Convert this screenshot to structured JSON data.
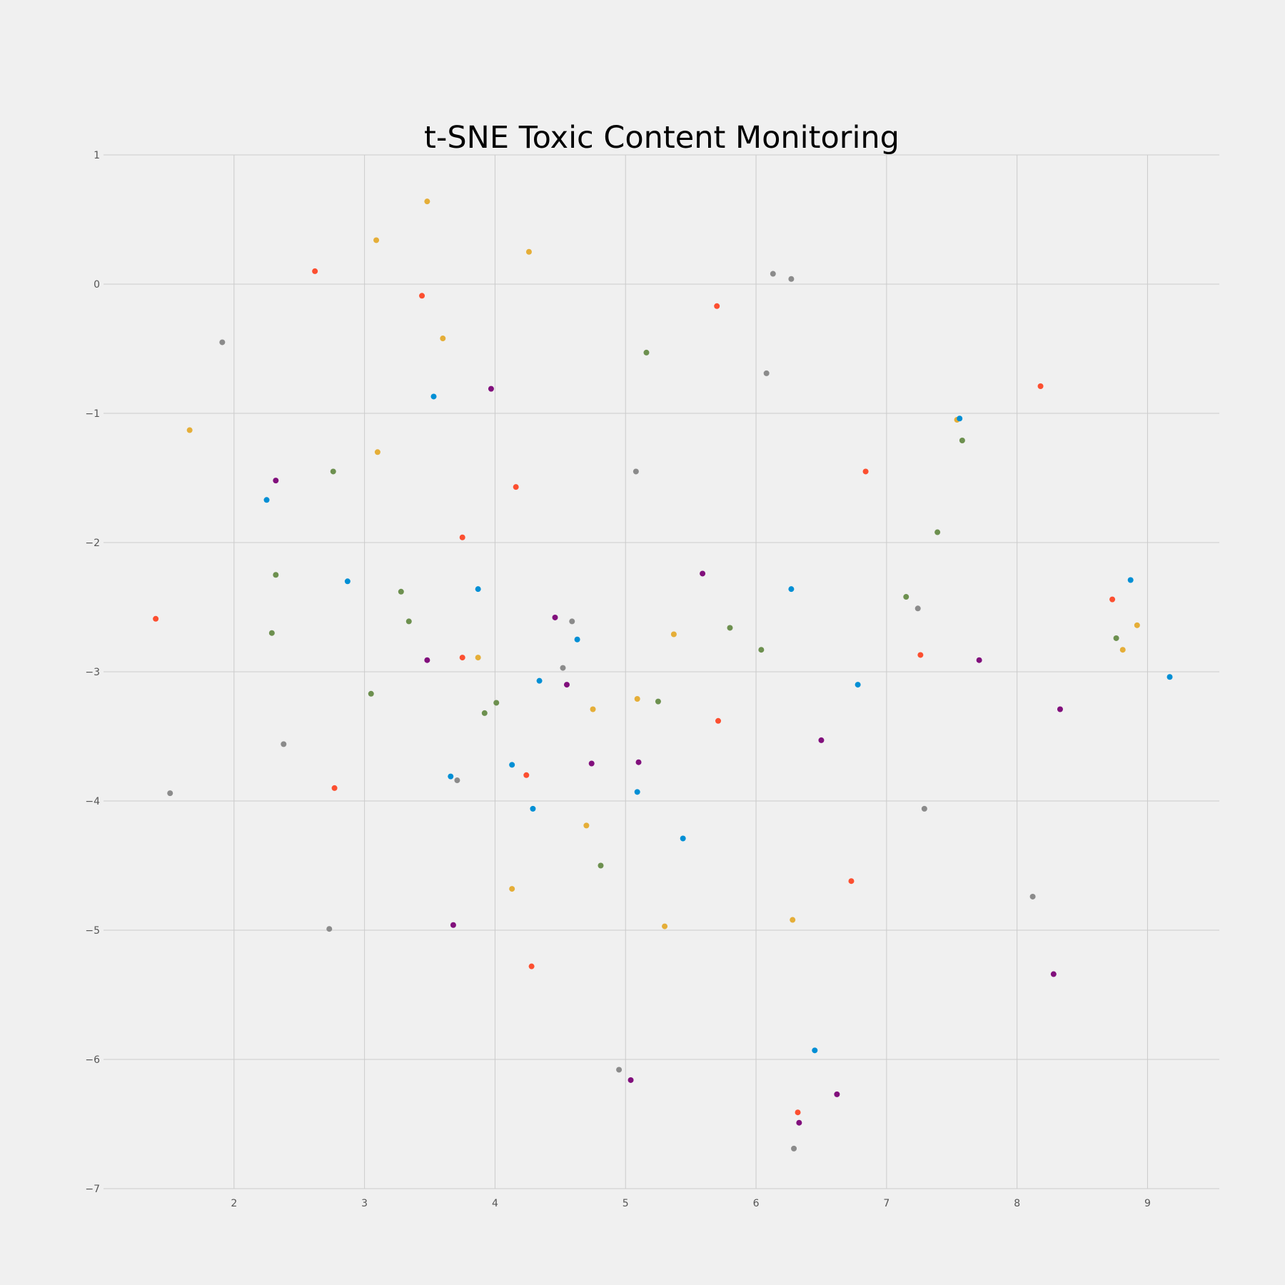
{
  "chart_data": {
    "type": "scatter",
    "title": "t-SNE Toxic Content Monitoring",
    "xlabel": "",
    "ylabel": "",
    "xlim": [
      1.0,
      9.55
    ],
    "ylim": [
      -7,
      1
    ],
    "xticks": [
      2,
      3,
      4,
      5,
      6,
      7,
      8,
      9
    ],
    "yticks": [
      1,
      0,
      -1,
      -2,
      -3,
      -4,
      -5,
      -6,
      -7
    ],
    "xtick_labels": [
      "2",
      "3",
      "4",
      "5",
      "6",
      "7",
      "8",
      "9"
    ],
    "ytick_labels": [
      "1",
      "0",
      "−1",
      "−2",
      "−3",
      "−4",
      "−5",
      "−6",
      "−7"
    ],
    "grid": true,
    "legend": "none",
    "series": [
      {
        "color": "#fc4f30",
        "points": [
          [
            2.62,
            0.1
          ],
          [
            3.44,
            -0.09
          ],
          [
            5.7,
            -0.17
          ],
          [
            8.18,
            -0.79
          ],
          [
            4.16,
            -1.57
          ],
          [
            6.84,
            -1.45
          ],
          [
            3.75,
            -1.96
          ],
          [
            1.4,
            -2.59
          ],
          [
            8.73,
            -2.44
          ],
          [
            3.75,
            -2.89
          ],
          [
            7.26,
            -2.87
          ],
          [
            5.71,
            -3.38
          ],
          [
            4.24,
            -3.8
          ],
          [
            2.77,
            -3.9
          ],
          [
            6.73,
            -4.62
          ],
          [
            4.28,
            -5.28
          ],
          [
            6.32,
            -6.41
          ]
        ]
      },
      {
        "color": "#e5ae38",
        "points": [
          [
            3.48,
            0.64
          ],
          [
            3.09,
            0.34
          ],
          [
            4.26,
            0.25
          ],
          [
            3.6,
            -0.42
          ],
          [
            1.66,
            -1.13
          ],
          [
            3.1,
            -1.3
          ],
          [
            7.54,
            -1.05
          ],
          [
            8.92,
            -2.64
          ],
          [
            5.37,
            -2.71
          ],
          [
            8.81,
            -2.83
          ],
          [
            3.87,
            -2.89
          ],
          [
            5.09,
            -3.21
          ],
          [
            4.75,
            -3.29
          ],
          [
            4.7,
            -4.19
          ],
          [
            4.13,
            -4.68
          ],
          [
            6.28,
            -4.92
          ],
          [
            5.3,
            -4.97
          ]
        ]
      },
      {
        "color": "#8b8b8b",
        "points": [
          [
            6.13,
            0.08
          ],
          [
            6.27,
            0.04
          ],
          [
            1.91,
            -0.45
          ],
          [
            6.08,
            -0.69
          ],
          [
            5.08,
            -1.45
          ],
          [
            4.59,
            -2.61
          ],
          [
            7.24,
            -2.51
          ],
          [
            4.52,
            -2.97
          ],
          [
            2.38,
            -3.56
          ],
          [
            3.71,
            -3.84
          ],
          [
            1.51,
            -3.94
          ],
          [
            7.29,
            -4.06
          ],
          [
            8.12,
            -4.74
          ],
          [
            2.73,
            -4.99
          ],
          [
            4.95,
            -6.08
          ],
          [
            6.29,
            -6.69
          ]
        ]
      },
      {
        "color": "#6d904f",
        "points": [
          [
            5.16,
            -0.53
          ],
          [
            7.58,
            -1.21
          ],
          [
            2.76,
            -1.45
          ],
          [
            7.39,
            -1.92
          ],
          [
            2.32,
            -2.25
          ],
          [
            3.28,
            -2.38
          ],
          [
            7.15,
            -2.42
          ],
          [
            3.34,
            -2.61
          ],
          [
            2.29,
            -2.7
          ],
          [
            5.8,
            -2.66
          ],
          [
            8.76,
            -2.74
          ],
          [
            6.04,
            -2.83
          ],
          [
            3.05,
            -3.17
          ],
          [
            4.01,
            -3.24
          ],
          [
            5.25,
            -3.23
          ],
          [
            3.92,
            -3.32
          ],
          [
            4.81,
            -4.5
          ]
        ]
      },
      {
        "color": "#008fd5",
        "points": [
          [
            3.53,
            -0.87
          ],
          [
            7.56,
            -1.04
          ],
          [
            2.25,
            -1.67
          ],
          [
            2.87,
            -2.3
          ],
          [
            3.87,
            -2.36
          ],
          [
            6.27,
            -2.36
          ],
          [
            8.87,
            -2.29
          ],
          [
            4.63,
            -2.75
          ],
          [
            4.34,
            -3.07
          ],
          [
            6.78,
            -3.1
          ],
          [
            9.17,
            -3.04
          ],
          [
            4.13,
            -3.72
          ],
          [
            3.66,
            -3.81
          ],
          [
            5.09,
            -3.93
          ],
          [
            4.29,
            -4.06
          ],
          [
            5.44,
            -4.29
          ],
          [
            6.45,
            -5.93
          ]
        ]
      },
      {
        "color": "#810f7c",
        "points": [
          [
            3.97,
            -0.81
          ],
          [
            2.32,
            -1.52
          ],
          [
            5.59,
            -2.24
          ],
          [
            4.46,
            -2.58
          ],
          [
            3.48,
            -2.91
          ],
          [
            7.71,
            -2.91
          ],
          [
            4.55,
            -3.1
          ],
          [
            8.33,
            -3.29
          ],
          [
            6.5,
            -3.53
          ],
          [
            4.74,
            -3.71
          ],
          [
            5.1,
            -3.7
          ],
          [
            3.68,
            -4.96
          ],
          [
            8.28,
            -5.34
          ],
          [
            5.04,
            -6.16
          ],
          [
            6.62,
            -6.27
          ],
          [
            6.33,
            -6.49
          ]
        ]
      }
    ]
  }
}
